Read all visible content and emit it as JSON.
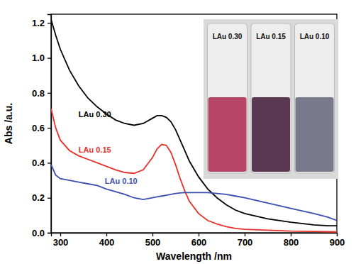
{
  "chart_data": {
    "type": "line",
    "x_label": "Wavelength /nm",
    "y_label": "Abs /a.u.",
    "x": [
      280,
      290,
      300,
      320,
      340,
      360,
      380,
      400,
      420,
      440,
      460,
      480,
      500,
      510,
      520,
      530,
      540,
      550,
      560,
      570,
      580,
      600,
      620,
      640,
      660,
      680,
      700,
      750,
      800,
      850,
      880,
      900
    ],
    "series": [
      {
        "name": "LAu 0.30",
        "color": "#000000",
        "values": [
          1.22,
          1.13,
          1.05,
          0.93,
          0.84,
          0.77,
          0.72,
          0.68,
          0.645,
          0.625,
          0.615,
          0.625,
          0.655,
          0.67,
          0.67,
          0.66,
          0.635,
          0.59,
          0.53,
          0.47,
          0.41,
          0.32,
          0.25,
          0.2,
          0.16,
          0.13,
          0.11,
          0.08,
          0.06,
          0.045,
          0.04,
          0.04
        ]
      },
      {
        "name": "LAu 0.15",
        "color": "#e8312a",
        "values": [
          0.71,
          0.6,
          0.53,
          0.47,
          0.44,
          0.42,
          0.4,
          0.38,
          0.36,
          0.345,
          0.34,
          0.36,
          0.43,
          0.48,
          0.505,
          0.5,
          0.46,
          0.39,
          0.31,
          0.24,
          0.18,
          0.11,
          0.07,
          0.05,
          0.035,
          0.025,
          0.02,
          0.015,
          0.01,
          0.008,
          0.006,
          0.005
        ]
      },
      {
        "name": "LAu 0.10",
        "color": "#3a4fb0",
        "values": [
          0.39,
          0.33,
          0.31,
          0.3,
          0.29,
          0.28,
          0.27,
          0.25,
          0.235,
          0.22,
          0.2,
          0.19,
          0.2,
          0.205,
          0.21,
          0.215,
          0.22,
          0.225,
          0.228,
          0.23,
          0.23,
          0.23,
          0.23,
          0.225,
          0.22,
          0.21,
          0.2,
          0.17,
          0.14,
          0.11,
          0.09,
          0.07
        ]
      }
    ],
    "xlim": [
      280,
      900
    ],
    "xticks": [
      300,
      400,
      500,
      600,
      700,
      800,
      900
    ],
    "ylim": [
      0,
      1.25
    ],
    "yticks": [
      {
        "value": 0,
        "label": "0.0"
      },
      0.2,
      0.4,
      0.6,
      0.8,
      {
        "value": 1,
        "label": "1.0"
      },
      1.2
    ],
    "grid": false
  }
}
